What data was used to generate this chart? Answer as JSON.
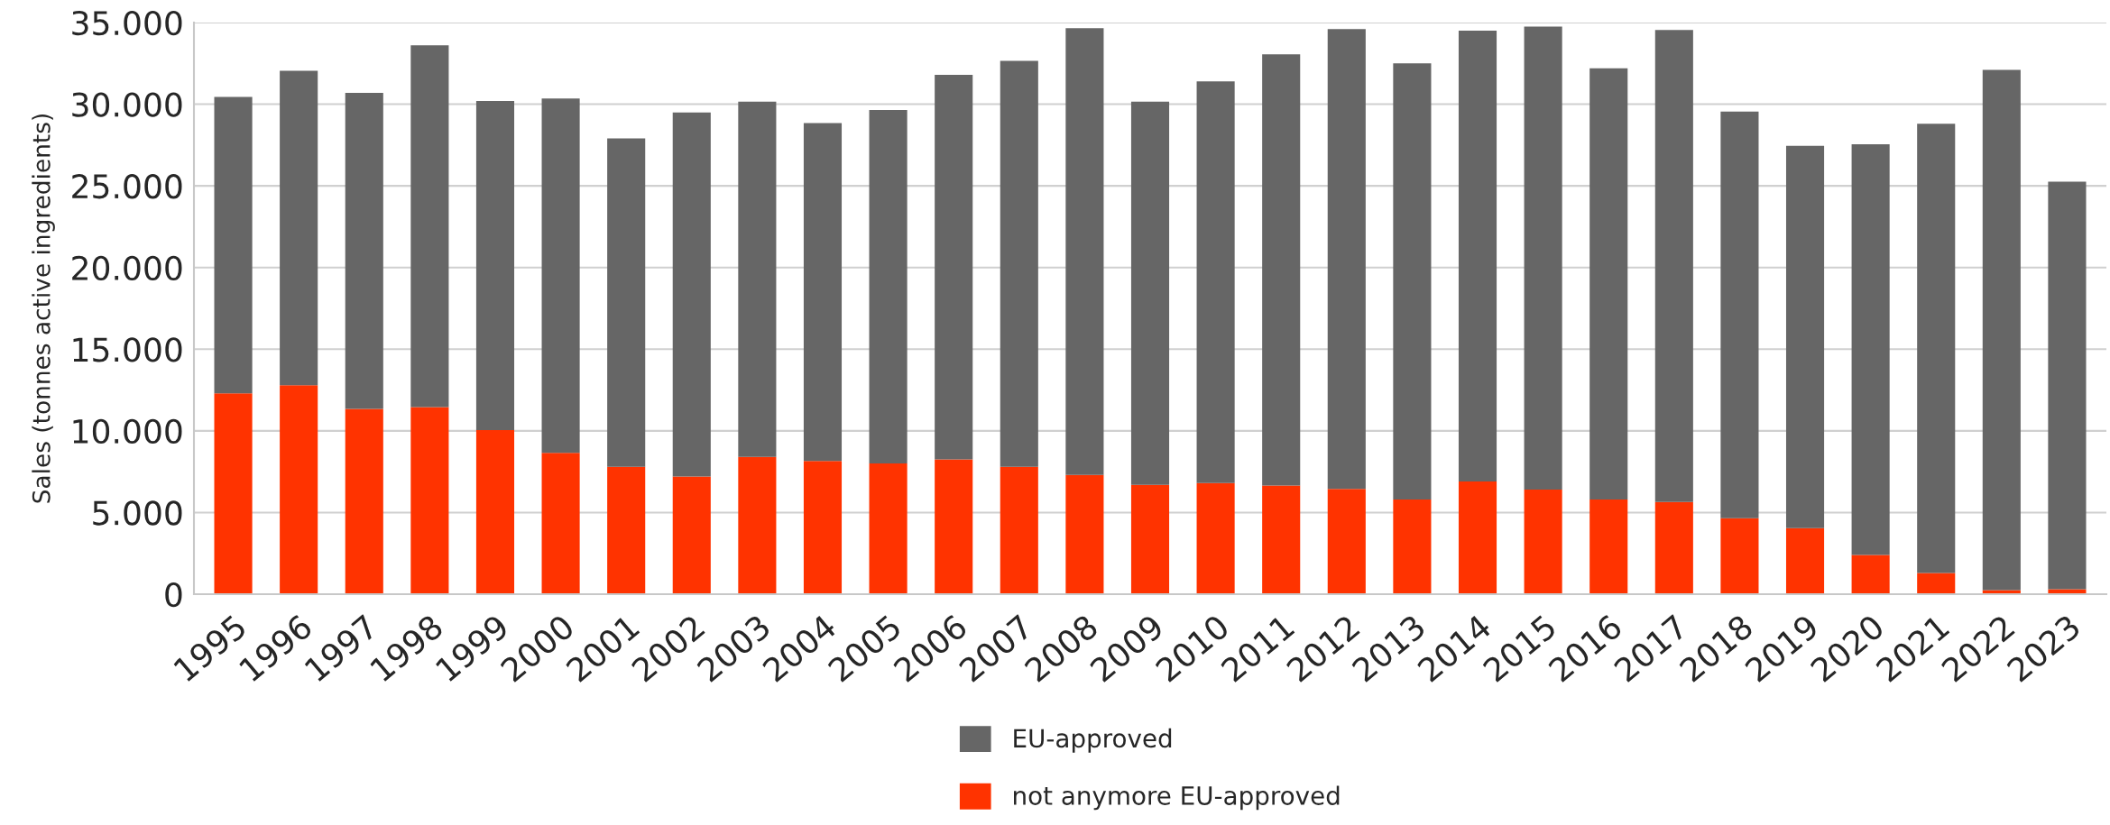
{
  "chart_data": {
    "type": "bar",
    "stacked": true,
    "ylabel": "Sales (tonnes active ingredients)",
    "categories": [
      "1995",
      "1996",
      "1997",
      "1998",
      "1999",
      "2000",
      "2001",
      "2002",
      "2003",
      "2004",
      "2005",
      "2006",
      "2007",
      "2008",
      "2009",
      "2010",
      "2011",
      "2012",
      "2013",
      "2014",
      "2015",
      "2016",
      "2017",
      "2018",
      "2019",
      "2020",
      "2021",
      "2022",
      "2023"
    ],
    "series": [
      {
        "name": "not anymore EU-approved",
        "color": "#ff3300",
        "values": [
          12300,
          12800,
          11350,
          11450,
          10050,
          8650,
          7800,
          7200,
          8400,
          8150,
          8000,
          8250,
          7800,
          7300,
          6700,
          6800,
          6650,
          6450,
          5800,
          6900,
          6400,
          5800,
          5650,
          4650,
          4050,
          2400,
          1300,
          250,
          300
        ]
      },
      {
        "name": "EU-approved",
        "color": "#666666",
        "values": [
          18150,
          19250,
          19350,
          22150,
          20150,
          21700,
          20100,
          22300,
          21750,
          20700,
          21650,
          23550,
          24850,
          27350,
          23450,
          24600,
          26400,
          28150,
          26700,
          27600,
          28350,
          26400,
          28900,
          24900,
          23400,
          25150,
          27500,
          31850,
          24950
        ]
      }
    ],
    "ylim": [
      0,
      35000
    ],
    "yticks": [
      0,
      {
        "value": 5000,
        "label": "5.000"
      },
      {
        "value": 10000,
        "label": "10.000"
      },
      {
        "value": 15000,
        "label": "15.000"
      },
      {
        "value": 20000,
        "label": "20.000"
      },
      {
        "value": 25000,
        "label": "25.000"
      },
      {
        "value": 30000,
        "label": "30.000"
      },
      {
        "value": 35000,
        "label": "35.000"
      }
    ],
    "grid": "y",
    "legend": "bottom"
  }
}
